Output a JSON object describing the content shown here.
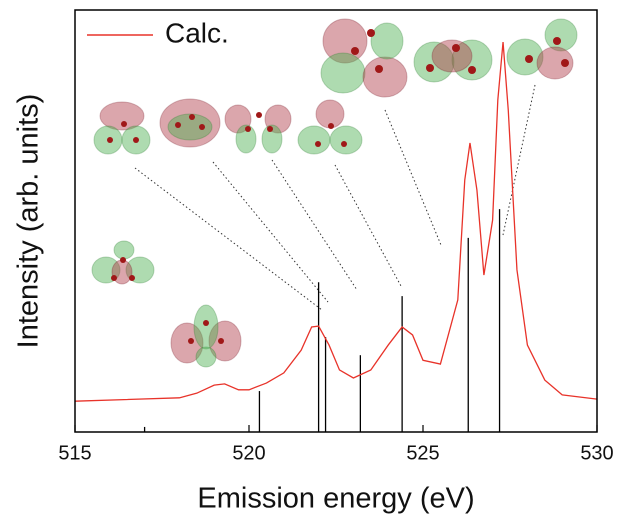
{
  "chart_data": {
    "type": "line",
    "xlabel": "Emission energy (eV)",
    "ylabel": "Intensity (arb. units)",
    "xlim": [
      515,
      530
    ],
    "xticks": [
      515,
      520,
      525,
      530
    ],
    "ylim": [
      0,
      100
    ],
    "legend": "upper left",
    "series": [
      {
        "name": "Calc.",
        "color": "#e8332a",
        "x": [
          515,
          518,
          518.5,
          519,
          519.3,
          519.7,
          520,
          520.5,
          521,
          521.5,
          521.8,
          522,
          522.3,
          522.6,
          523,
          523.5,
          524,
          524.4,
          524.7,
          525,
          525.5,
          526,
          526.2,
          526.35,
          526.55,
          526.75,
          527,
          527.15,
          527.3,
          527.45,
          527.7,
          528,
          528.5,
          529,
          530
        ],
        "values": [
          7.3,
          8.1,
          9.2,
          11.1,
          11.4,
          10,
          10,
          11.6,
          14,
          19.4,
          24.9,
          25.1,
          20.6,
          14.7,
          12.8,
          14.7,
          20.6,
          24.9,
          23,
          17,
          16.1,
          31.3,
          59.7,
          68.5,
          57.3,
          37.2,
          50.2,
          78.7,
          92.4,
          76.3,
          38.4,
          20.6,
          12.3,
          8.8,
          7.8
        ]
      }
    ],
    "sticks": {
      "color": "#000000",
      "x": [
        517.0,
        520.3,
        522.0,
        522.2,
        523.2,
        524.4,
        526.3,
        527.2
      ],
      "values": [
        1.2,
        9.7,
        35.5,
        22.5,
        18.2,
        32.2,
        46,
        52.8
      ]
    }
  }
}
